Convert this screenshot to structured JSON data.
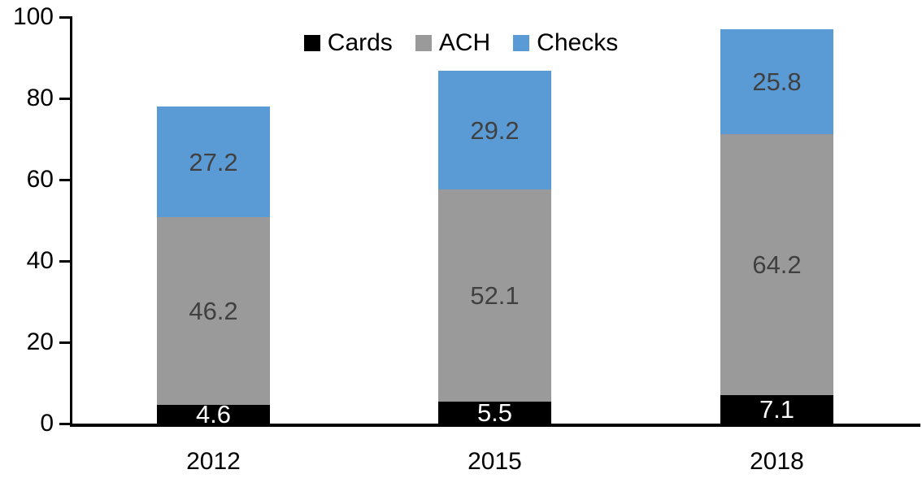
{
  "chart_data": {
    "type": "bar",
    "stacked": true,
    "title": "",
    "xlabel": "",
    "ylabel": "",
    "grid": false,
    "legend_position": "top-center",
    "axis_color": "#000000",
    "text_color": "#000000",
    "categories": [
      "2012",
      "2015",
      "2018"
    ],
    "series": [
      {
        "name": "Cards",
        "color": "#000000",
        "label_color": "#ffffff",
        "values": [
          4.6,
          5.5,
          7.1
        ]
      },
      {
        "name": "ACH",
        "color": "#9a9a9a",
        "label_color": "#404040",
        "values": [
          46.2,
          52.1,
          64.2
        ]
      },
      {
        "name": "Checks",
        "color": "#5b9bd5",
        "label_color": "#404040",
        "values": [
          27.2,
          29.2,
          25.8
        ]
      }
    ],
    "yticks": [
      0,
      20,
      40,
      60,
      80,
      100
    ],
    "ylim": [
      0,
      100
    ]
  }
}
